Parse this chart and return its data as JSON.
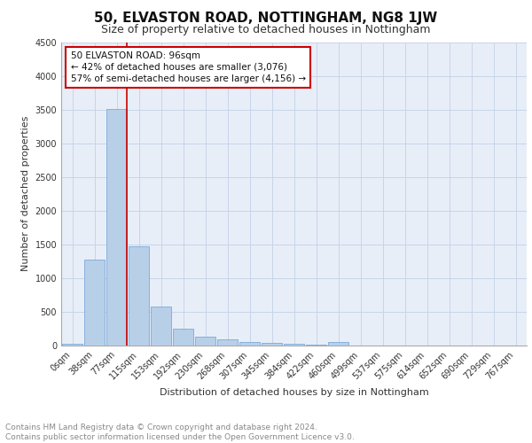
{
  "title": "50, ELVASTON ROAD, NOTTINGHAM, NG8 1JW",
  "subtitle": "Size of property relative to detached houses in Nottingham",
  "xlabel": "Distribution of detached houses by size in Nottingham",
  "ylabel": "Number of detached properties",
  "footer_line1": "Contains HM Land Registry data © Crown copyright and database right 2024.",
  "footer_line2": "Contains public sector information licensed under the Open Government Licence v3.0.",
  "categories": [
    "0sqm",
    "38sqm",
    "77sqm",
    "115sqm",
    "153sqm",
    "192sqm",
    "230sqm",
    "268sqm",
    "307sqm",
    "345sqm",
    "384sqm",
    "422sqm",
    "460sqm",
    "499sqm",
    "537sqm",
    "575sqm",
    "614sqm",
    "652sqm",
    "690sqm",
    "729sqm",
    "767sqm"
  ],
  "values": [
    30,
    1280,
    3510,
    1470,
    580,
    250,
    130,
    90,
    50,
    35,
    20,
    10,
    50,
    0,
    0,
    0,
    0,
    0,
    0,
    0,
    0
  ],
  "bar_color": "#b8cfe8",
  "bar_edge_color": "#6a9fd8",
  "ylim": [
    0,
    4500
  ],
  "yticks": [
    0,
    500,
    1000,
    1500,
    2000,
    2500,
    3000,
    3500,
    4000,
    4500
  ],
  "annotation_title": "50 ELVASTON ROAD: 96sqm",
  "annotation_line1": "← 42% of detached houses are smaller (3,076)",
  "annotation_line2": "57% of semi-detached houses are larger (4,156) →",
  "annotation_box_color": "#ffffff",
  "annotation_box_edge_color": "#cc0000",
  "vline_color": "#cc0000",
  "grid_color": "#c8d4e8",
  "bg_color": "#e8eef8",
  "title_fontsize": 11,
  "subtitle_fontsize": 9,
  "axis_label_fontsize": 8,
  "tick_fontsize": 7,
  "annotation_fontsize": 7.5,
  "footer_fontsize": 6.5
}
